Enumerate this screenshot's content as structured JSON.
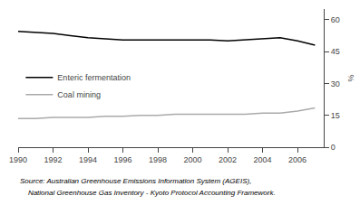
{
  "chart_data": {
    "type": "line",
    "title": "",
    "ylabel": "%",
    "x": [
      1990,
      1991,
      1992,
      1993,
      1994,
      1995,
      1996,
      1997,
      1998,
      1999,
      2000,
      2001,
      2002,
      2003,
      2004,
      2005,
      2006,
      2007
    ],
    "series": [
      {
        "name": "Enteric fermentation",
        "color": "#000000",
        "values": [
          54.5,
          54.0,
          53.5,
          52.5,
          51.5,
          51.0,
          50.5,
          50.5,
          50.5,
          50.5,
          50.5,
          50.5,
          50.0,
          50.5,
          51.0,
          51.5,
          50.0,
          48.0
        ]
      },
      {
        "name": "Coal mining",
        "color": "#aaaaaa",
        "values": [
          13.5,
          13.5,
          14.0,
          14.0,
          14.0,
          14.5,
          14.5,
          15.0,
          15.0,
          15.5,
          15.5,
          15.5,
          15.5,
          15.5,
          16.0,
          16.0,
          17.0,
          18.5
        ]
      }
    ],
    "xlim": [
      1990,
      2007.5
    ],
    "xticks": [
      1990,
      1992,
      1994,
      1996,
      1998,
      2000,
      2002,
      2004,
      2006
    ],
    "ylim": [
      0,
      65
    ],
    "yticks": [
      0,
      15,
      30,
      45,
      60
    ],
    "grid": false,
    "legend": "upper left",
    "annotations": [
      "Source: Australian Greenhouse Emissions Information System (AGEIS),",
      "    National Greenhouse Gas Inventory - Kyoto Protocol Accounting Framework."
    ]
  }
}
